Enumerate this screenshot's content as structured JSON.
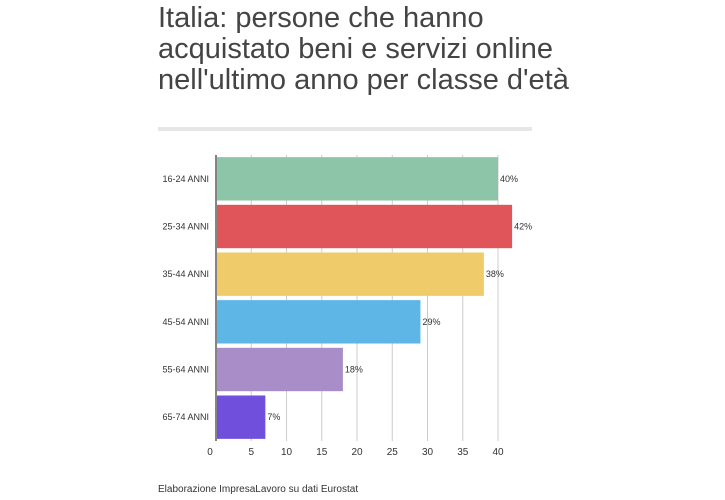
{
  "chart_data": {
    "type": "bar",
    "orientation": "horizontal",
    "title": "Italia: persone che hanno acquistato beni e servizi online nell'ultimo anno per classe d'età",
    "categories": [
      "16-24 ANNI",
      "25-34 ANNI",
      "35-44 ANNI",
      "45-54 ANNI",
      "55-64 ANNI",
      "65-74 ANNI"
    ],
    "values": [
      40,
      42,
      38,
      29,
      18,
      7
    ],
    "value_labels": [
      "40%",
      "42%",
      "38%",
      "29%",
      "18%",
      "7%"
    ],
    "colors": [
      "#8cc5a7",
      "#e05559",
      "#f0cb69",
      "#5db6e6",
      "#a98dc8",
      "#6f4fdc"
    ],
    "xlim": [
      0,
      40
    ],
    "xticks": [
      0,
      5,
      10,
      15,
      20,
      25,
      30,
      35,
      40
    ],
    "grid": true,
    "source": "Elaborazione ImpresaLavoro su dati Eurostat"
  }
}
